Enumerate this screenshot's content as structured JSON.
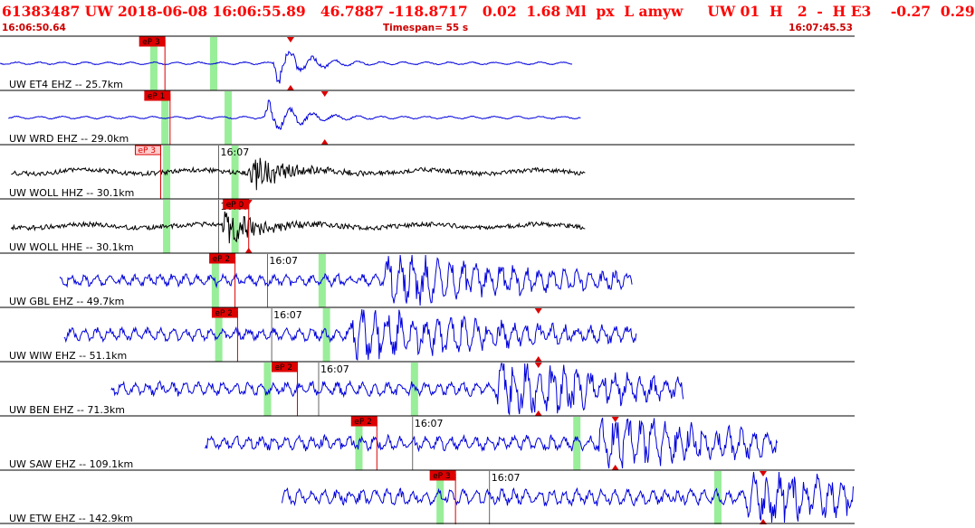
{
  "header": {
    "title": "61383487 UW 2018-06-08 16:06:55.89   46.7887 -118.8717   0.02  1.68 Ml  px  L amyw     UW 01  H   2  -  H E3    -0.27  0.29",
    "start_time": "16:06:50.64",
    "timespan": "Timespan=  55 s",
    "end_time": "16:07:45.53"
  },
  "colors": {
    "header_text": "#ff0000",
    "blue_trace": "#0000dd",
    "black_trace": "#000000",
    "pick_red": "#dd0000",
    "green_band": "#99ee99",
    "pale_pick": "#ffcccc"
  },
  "chart_data": {
    "type": "seismogram",
    "tick_label": "16:07",
    "traces": [
      {
        "label": "UW ET4 EHZ -- 25.7km",
        "color": "blue",
        "pick": "eP 3",
        "pick_style": "solid",
        "show_tick": false,
        "start": 0.0,
        "end": 0.67,
        "pick_x": 0.193,
        "arrival": 0.34,
        "s_mark": 0.34,
        "green": [
          0.18,
          0.25
        ]
      },
      {
        "label": "UW WRD EHZ -- 29.0km",
        "color": "blue",
        "pick": "eP 1",
        "pick_style": "solid",
        "show_tick": false,
        "start": 0.01,
        "end": 0.68,
        "pick_x": 0.199,
        "arrival": 0.33,
        "s_mark": 0.38,
        "green": [
          0.193,
          0.267
        ]
      },
      {
        "label": "UW WOLL HHZ -- 30.1km",
        "color": "black",
        "pick": "eP 3",
        "pick_style": "pale",
        "show_tick": true,
        "start": 0.013,
        "end": 0.685,
        "pick_x": 0.188,
        "arrival": 0.31,
        "s_mark": null,
        "green": [
          0.195,
          0.275
        ]
      },
      {
        "label": "UW WOLL HHE -- 30.1km",
        "color": "black",
        "pick": "eP 0",
        "pick_style": "solid",
        "show_tick": true,
        "start": 0.013,
        "end": 0.685,
        "pick_x": 0.291,
        "arrival": 0.28,
        "s_mark": 0.291,
        "green": [
          0.195,
          0.275
        ]
      },
      {
        "label": "UW GBL EHZ -- 49.7km",
        "color": "blue",
        "pick": "eP 2",
        "pick_style": "solid",
        "show_tick": true,
        "start": 0.07,
        "end": 0.74,
        "pick_x": 0.275,
        "arrival": 0.47,
        "s_mark": null,
        "green": [
          0.252,
          0.377
        ]
      },
      {
        "label": "UW WIW EHZ -- 51.1km",
        "color": "blue",
        "pick": "eP 2",
        "pick_style": "solid",
        "show_tick": true,
        "start": 0.075,
        "end": 0.745,
        "pick_x": 0.278,
        "arrival": 0.43,
        "s_mark": 0.63,
        "green": [
          0.256,
          0.382
        ]
      },
      {
        "label": "UW BEN EHZ -- 71.3km",
        "color": "blue",
        "pick": "eP 2",
        "pick_style": "solid",
        "show_tick": true,
        "start": 0.13,
        "end": 0.8,
        "pick_x": 0.348,
        "arrival": 0.6,
        "s_mark": 0.63,
        "green": [
          0.313,
          0.485
        ]
      },
      {
        "label": "UW SAW EHZ -- 109.1km",
        "color": "blue",
        "pick": "eP 2",
        "pick_style": "solid",
        "show_tick": true,
        "start": 0.24,
        "end": 0.91,
        "pick_x": 0.441,
        "arrival": 0.72,
        "s_mark": 0.72,
        "green": [
          0.42,
          0.675
        ]
      },
      {
        "label": "UW ETW EHZ -- 142.9km",
        "color": "blue",
        "pick": "eP 3",
        "pick_style": "solid",
        "show_tick": true,
        "start": 0.33,
        "end": 1.0,
        "pick_x": 0.533,
        "arrival": 0.893,
        "s_mark": 0.893,
        "green": [
          0.515,
          0.84
        ]
      }
    ]
  }
}
